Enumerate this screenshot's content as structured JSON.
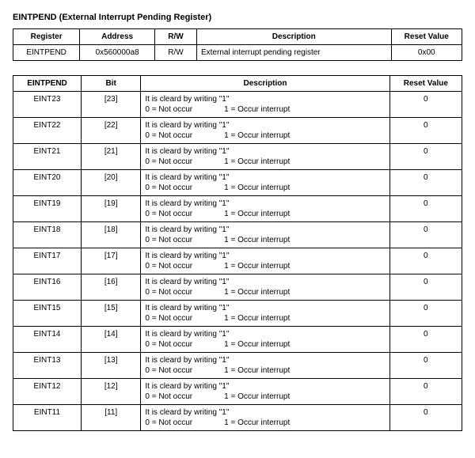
{
  "title": "EINTPEND (External Interrupt Pending Register)",
  "table1": {
    "headers": {
      "register": "Register",
      "address": "Address",
      "rw": "R/W",
      "description": "Description",
      "reset": "Reset Value"
    },
    "row": {
      "register": "EINTPEND",
      "address": "0x560000a8",
      "rw": "R/W",
      "description": "External interrupt pending register",
      "reset": "0x00"
    }
  },
  "table2": {
    "headers": {
      "eintpend": "EINTPEND",
      "bit": "Bit",
      "description": "Description",
      "reset": "Reset Value"
    },
    "desc_line1": "It is cleard by writing \"1\"",
    "desc_line2a": "0 = Not occur",
    "desc_line2b": "1 = Occur interrupt",
    "rows": [
      {
        "name": "EINT23",
        "bit": "[23]",
        "reset": "0"
      },
      {
        "name": "EINT22",
        "bit": "[22]",
        "reset": "0"
      },
      {
        "name": "EINT21",
        "bit": "[21]",
        "reset": "0"
      },
      {
        "name": "EINT20",
        "bit": "[20]",
        "reset": "0"
      },
      {
        "name": "EINT19",
        "bit": "[19]",
        "reset": "0"
      },
      {
        "name": "EINT18",
        "bit": "[18]",
        "reset": "0"
      },
      {
        "name": "EINT17",
        "bit": "[17]",
        "reset": "0"
      },
      {
        "name": "EINT16",
        "bit": "[16]",
        "reset": "0"
      },
      {
        "name": "EINT15",
        "bit": "[15]",
        "reset": "0"
      },
      {
        "name": "EINT14",
        "bit": "[14]",
        "reset": "0"
      },
      {
        "name": "EINT13",
        "bit": "[13]",
        "reset": "0"
      },
      {
        "name": "EINT12",
        "bit": "[12]",
        "reset": "0"
      },
      {
        "name": "EINT11",
        "bit": "[11]",
        "reset": "0"
      }
    ]
  }
}
